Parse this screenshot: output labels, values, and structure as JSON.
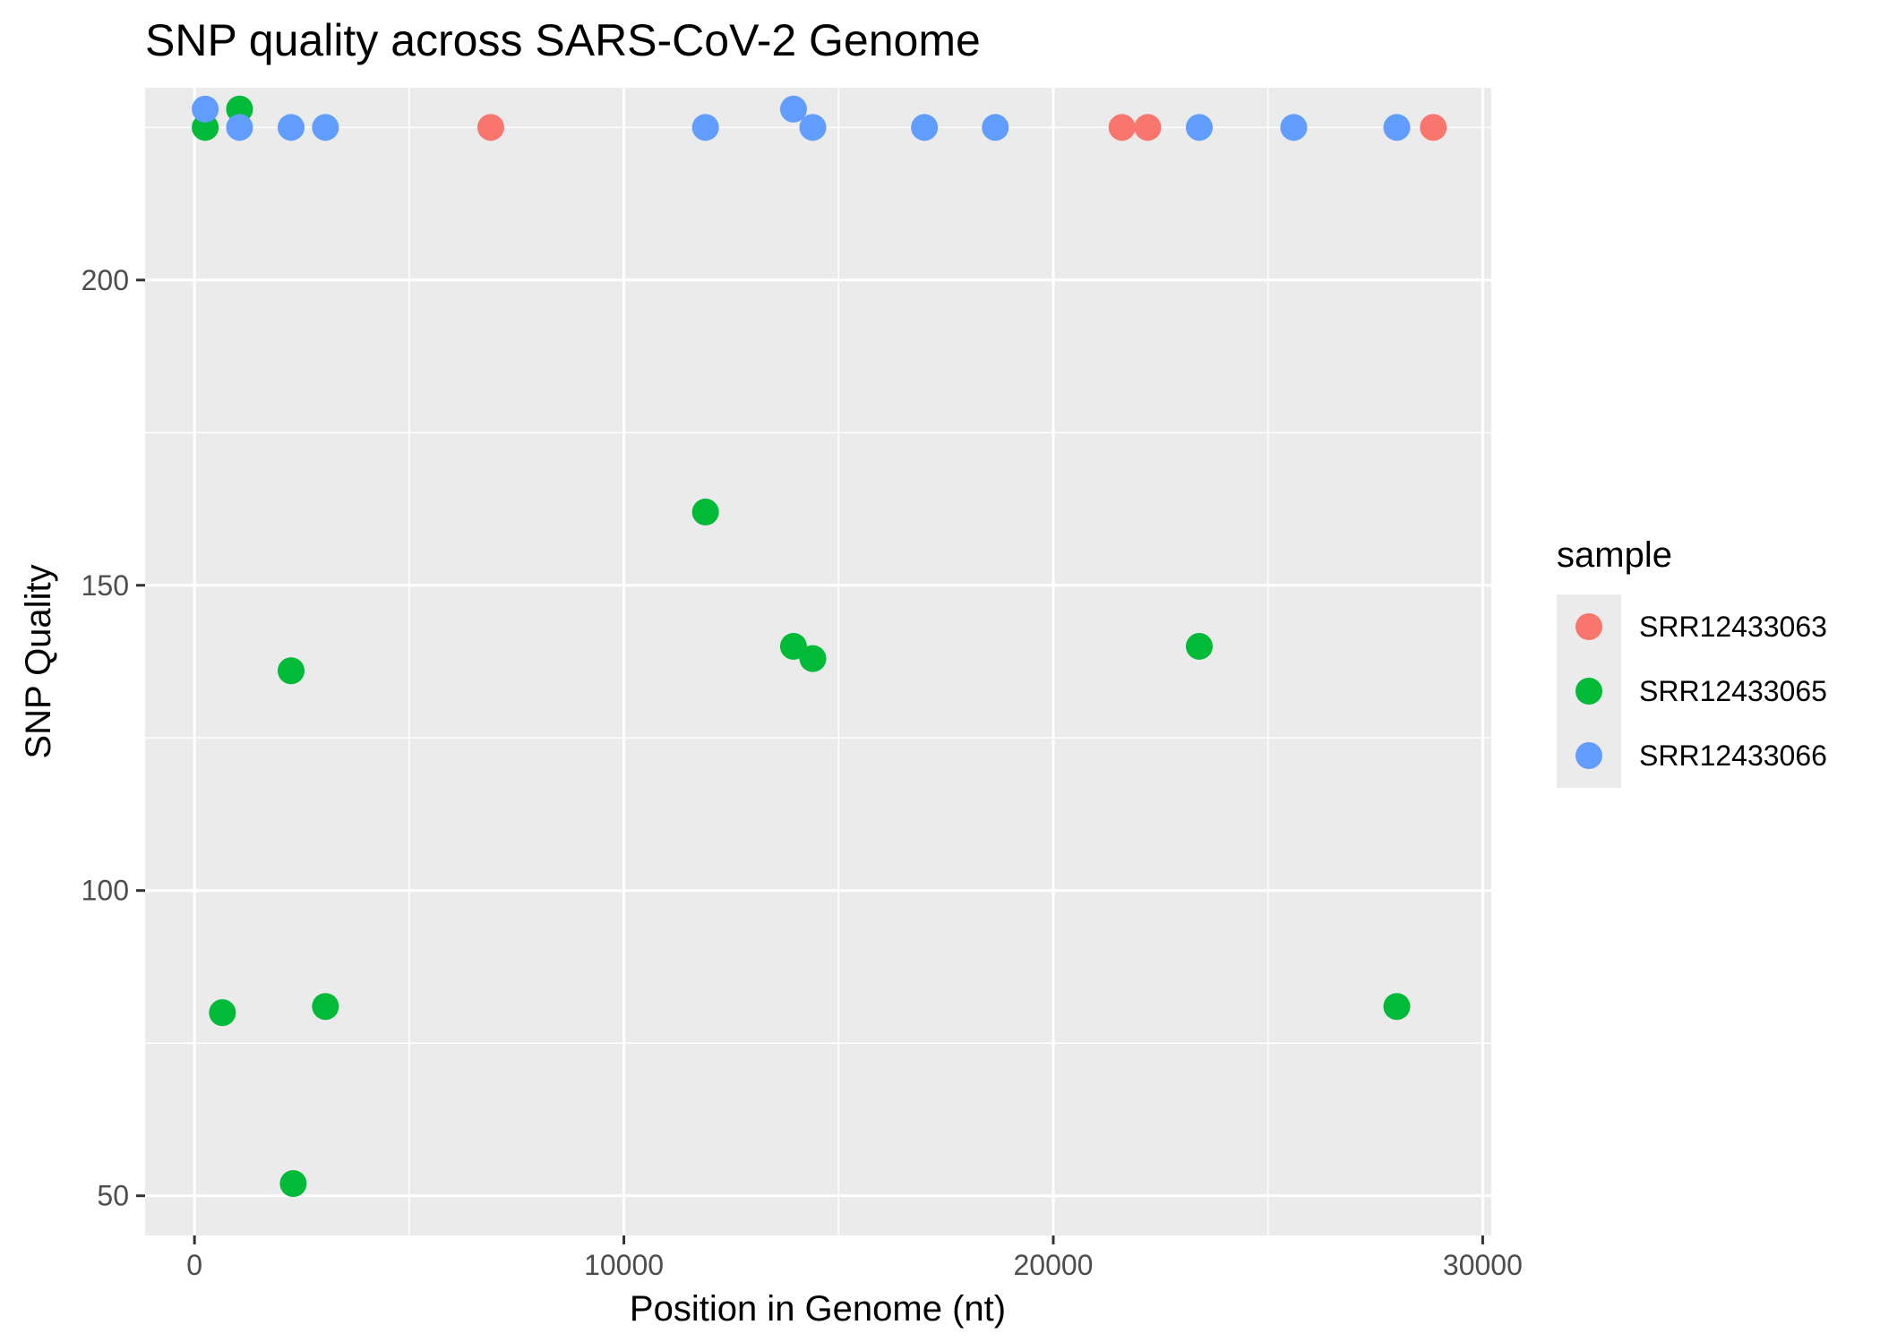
{
  "chart_data": {
    "type": "scatter",
    "title": "SNP quality across SARS-CoV-2 Genome",
    "xlabel": "Position in Genome (nt)",
    "ylabel": "SNP Quality",
    "xlim": [
      -1150,
      30200
    ],
    "ylim": [
      43.5,
      231.5
    ],
    "x_ticks": [
      0,
      10000,
      20000,
      30000
    ],
    "x_tick_labels": [
      "0",
      "10000",
      "20000",
      "30000"
    ],
    "y_ticks": [
      50,
      100,
      150,
      200
    ],
    "y_tick_labels": [
      "50",
      "100",
      "150",
      "200"
    ],
    "x_minor_ticks": [
      5000,
      15000,
      25000
    ],
    "y_minor_ticks": [
      75,
      125,
      175,
      225
    ],
    "grid": true,
    "background": "#ebebeb",
    "legend": {
      "title": "sample",
      "position": "right",
      "background": "#ebebeb"
    },
    "series": [
      {
        "name": "SRR12433063",
        "color": "#f8766d",
        "points": [
          {
            "x": 6900,
            "y": 225
          },
          {
            "x": 21600,
            "y": 225
          },
          {
            "x": 22200,
            "y": 225
          },
          {
            "x": 28850,
            "y": 225
          }
        ]
      },
      {
        "name": "SRR12433065",
        "color": "#00ba38",
        "points": [
          {
            "x": 250,
            "y": 225
          },
          {
            "x": 1050,
            "y": 228
          },
          {
            "x": 650,
            "y": 80
          },
          {
            "x": 2250,
            "y": 136
          },
          {
            "x": 2300,
            "y": 52
          },
          {
            "x": 3050,
            "y": 81
          },
          {
            "x": 11900,
            "y": 162
          },
          {
            "x": 13950,
            "y": 140
          },
          {
            "x": 14400,
            "y": 138
          },
          {
            "x": 23400,
            "y": 140
          },
          {
            "x": 28000,
            "y": 81
          }
        ]
      },
      {
        "name": "SRR12433066",
        "color": "#619cff",
        "points": [
          {
            "x": 250,
            "y": 228
          },
          {
            "x": 1050,
            "y": 225
          },
          {
            "x": 2250,
            "y": 225
          },
          {
            "x": 3050,
            "y": 225
          },
          {
            "x": 11900,
            "y": 225
          },
          {
            "x": 13950,
            "y": 228
          },
          {
            "x": 14400,
            "y": 225
          },
          {
            "x": 17000,
            "y": 225
          },
          {
            "x": 18650,
            "y": 225
          },
          {
            "x": 23400,
            "y": 225
          },
          {
            "x": 25600,
            "y": 225
          },
          {
            "x": 28000,
            "y": 225
          }
        ]
      }
    ]
  }
}
